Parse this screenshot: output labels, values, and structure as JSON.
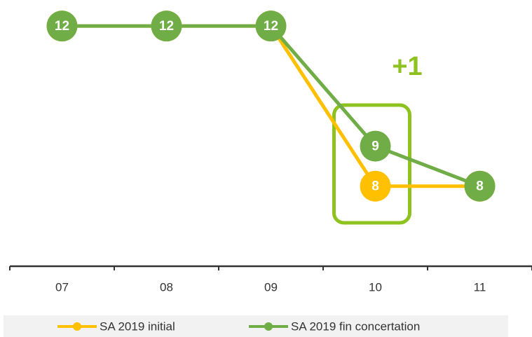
{
  "chart_data": {
    "type": "line",
    "categories": [
      "07",
      "08",
      "09",
      "10",
      "11"
    ],
    "series": [
      {
        "name": "SA 2019 initial",
        "color": "#FFC000",
        "values": [
          12,
          12,
          12,
          8,
          8
        ]
      },
      {
        "name": "SA 2019 fin concertation",
        "color": "#70AD47",
        "values": [
          12,
          12,
          12,
          9,
          8
        ]
      }
    ],
    "ylim": [
      6,
      13
    ],
    "annotation": "+1",
    "annotation_color": "#8DC21F",
    "legend": "bottom"
  }
}
